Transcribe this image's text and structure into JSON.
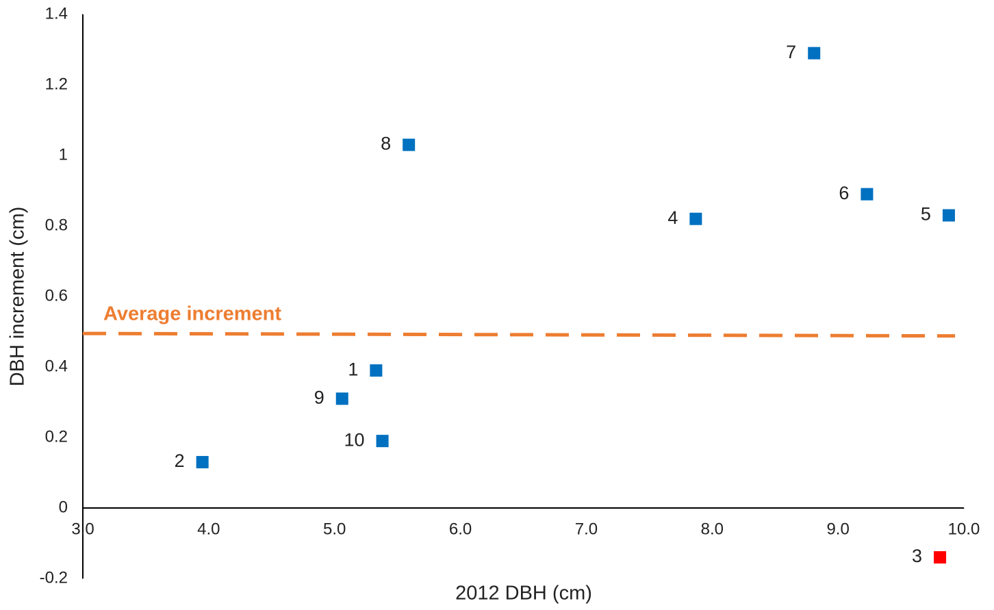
{
  "chart_data": {
    "type": "scatter",
    "x_label": "2012 DBH (cm)",
    "y_label": "DBH increment (cm)",
    "xlim": [
      3.0,
      10.0
    ],
    "ylim": [
      -0.2,
      1.4
    ],
    "xticks": [
      {
        "value": 3,
        "label": "3.0"
      },
      {
        "value": 4,
        "label": "4.0"
      },
      {
        "value": 5,
        "label": "5.0"
      },
      {
        "value": 6,
        "label": "6.0"
      },
      {
        "value": 7,
        "label": "7.0"
      },
      {
        "value": 8,
        "label": "8.0"
      },
      {
        "value": 9,
        "label": "9.0"
      },
      {
        "value": 10,
        "label": "10.0"
      }
    ],
    "yticks": [
      -0.2,
      0,
      0.2,
      0.4,
      0.6,
      0.8,
      1,
      1.2,
      1.4
    ],
    "grid": false,
    "points": {
      "labels": [
        "1",
        "2",
        "3",
        "4",
        "5",
        "6",
        "7",
        "8",
        "9",
        "10"
      ],
      "x": [
        5.33,
        3.95,
        9.81,
        7.87,
        9.88,
        9.23,
        8.81,
        5.59,
        5.06,
        5.38
      ],
      "y": [
        0.39,
        0.13,
        -0.14,
        0.82,
        0.83,
        0.89,
        1.29,
        1.03,
        0.31,
        0.19
      ],
      "colors": [
        "#0070c0",
        "#0070c0",
        "#ff0000",
        "#0070c0",
        "#0070c0",
        "#0070c0",
        "#0070c0",
        "#0070c0",
        "#0070c0",
        "#0070c0"
      ]
    },
    "average": {
      "label": "Average increment",
      "x": [
        3.0,
        9.93
      ],
      "y": [
        0.495,
        0.488
      ],
      "color": "#ed7d31"
    }
  }
}
